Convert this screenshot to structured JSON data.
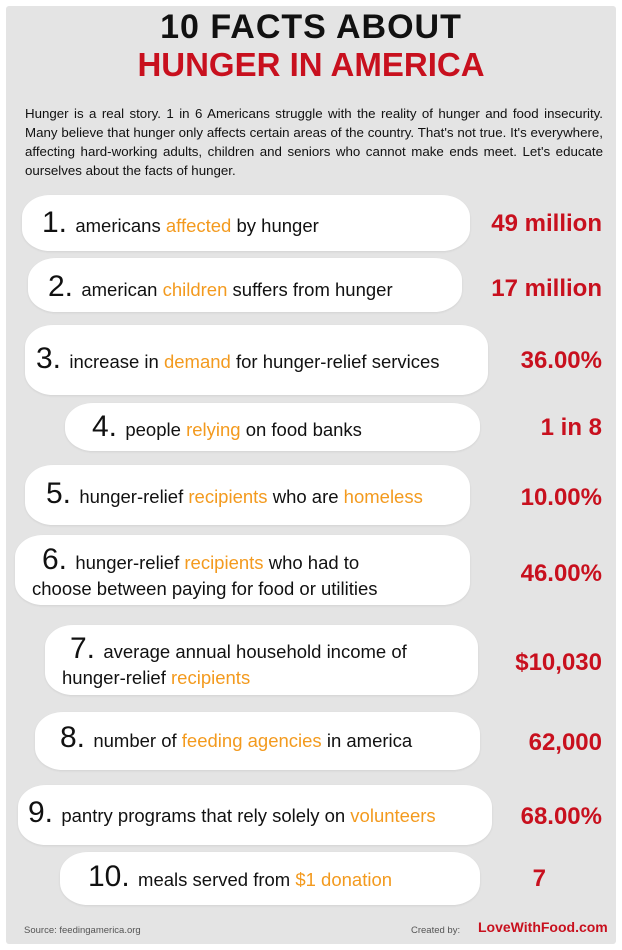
{
  "title_line1": "10  FACTS  ABOUT",
  "title_line2": "HUNGER IN AMERICA",
  "intro": "Hunger is a real story. 1 in 6 Americans struggle with the reality of hunger and food insecurity. Many believe that hunger only affects certain areas of the country. That's not true. It's everywhere, affecting hard-working adults, children and seniors who cannot make ends meet. Let's educate ourselves about the facts of hunger.",
  "colors": {
    "title_red": "#c8101e",
    "highlight": "#f39a1e",
    "background": "#e4e4e4"
  },
  "facts": [
    {
      "number": "1.",
      "lines": [
        [
          [
            "americans ",
            0
          ],
          [
            "affected",
            1
          ],
          [
            " by hunger",
            0
          ]
        ]
      ],
      "value": "49 million"
    },
    {
      "number": "2.",
      "lines": [
        [
          [
            "american ",
            0
          ],
          [
            "children",
            1
          ],
          [
            " suffers from hunger",
            0
          ]
        ]
      ],
      "value": "17 million"
    },
    {
      "number": "3.",
      "lines": [
        [
          [
            "increase in ",
            0
          ],
          [
            "demand",
            1
          ],
          [
            " for hunger-relief services",
            0
          ]
        ]
      ],
      "value": "36.00%"
    },
    {
      "number": "4.",
      "lines": [
        [
          [
            "people ",
            0
          ],
          [
            "relying",
            1
          ],
          [
            " on food banks",
            0
          ]
        ]
      ],
      "value": "1 in 8"
    },
    {
      "number": "5.",
      "lines": [
        [
          [
            "hunger-relief ",
            0
          ],
          [
            "recipients",
            1
          ],
          [
            " who are ",
            0
          ],
          [
            "homeless",
            1
          ]
        ]
      ],
      "value": "10.00%"
    },
    {
      "number": "6.",
      "lines": [
        [
          [
            "hunger-relief ",
            0
          ],
          [
            "recipients",
            1
          ],
          [
            " who had to",
            0
          ]
        ],
        [
          [
            "choose between paying for food or utilities",
            0
          ]
        ]
      ],
      "value": "46.00%"
    },
    {
      "number": "7.",
      "lines": [
        [
          [
            "average annual household income of",
            0
          ]
        ],
        [
          [
            "hunger-relief ",
            0
          ],
          [
            "recipients",
            1
          ]
        ]
      ],
      "value": "$10,030"
    },
    {
      "number": "8.",
      "lines": [
        [
          [
            "number of ",
            0
          ],
          [
            "feeding agencies",
            1
          ],
          [
            " in america",
            0
          ]
        ]
      ],
      "value": "62,000"
    },
    {
      "number": "9.",
      "lines": [
        [
          [
            "pantry programs that rely solely on ",
            0
          ],
          [
            "volunteers",
            1
          ]
        ]
      ],
      "value": "68.00%"
    },
    {
      "number": "10.",
      "lines": [
        [
          [
            "meals served from ",
            0
          ],
          [
            "$1 donation",
            1
          ]
        ]
      ],
      "value": "7"
    }
  ],
  "footer": {
    "source": "Source: feedingamerica.org",
    "created_by": "Created by:",
    "logo": "LoveWithFood.com"
  }
}
